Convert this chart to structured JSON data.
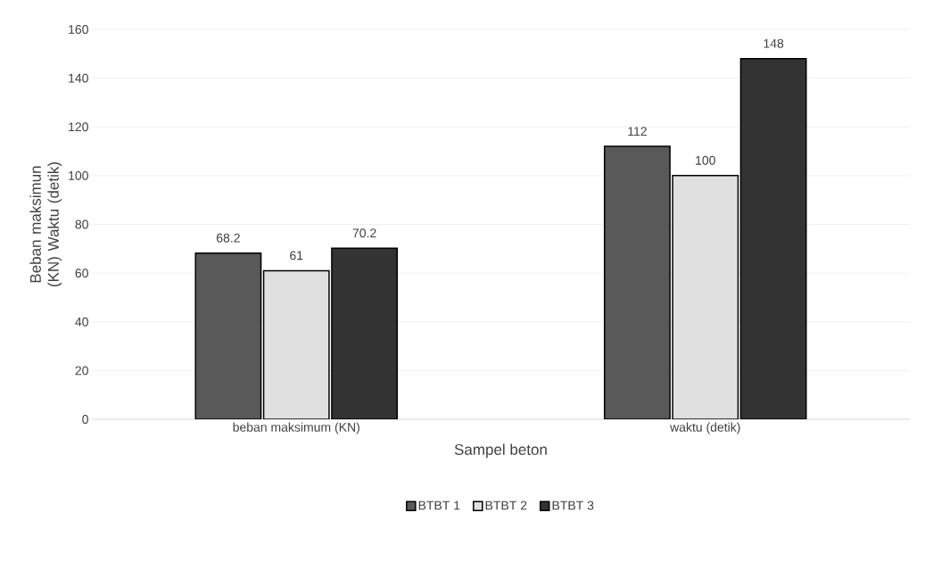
{
  "chart_data": {
    "type": "bar",
    "xlabel": "Sampel beton",
    "ylabel": "Beban maksimun (KN) Waktu (detik)",
    "categories": [
      "beban maksimum (KN)",
      "waktu (detik)"
    ],
    "series": [
      {
        "name": "BTBT 1",
        "color": "#595959",
        "values": [
          68.2,
          112
        ]
      },
      {
        "name": "BTBT 2",
        "color": "#e0e0e0",
        "values": [
          61,
          100
        ]
      },
      {
        "name": "BTBT 3",
        "color": "#333333",
        "values": [
          70.2,
          148
        ]
      }
    ],
    "ylim": [
      0,
      160
    ],
    "yticks": [
      0,
      20,
      40,
      60,
      80,
      100,
      120,
      140,
      160
    ],
    "grid": "y",
    "legend": "bottom",
    "data_labels": true
  }
}
